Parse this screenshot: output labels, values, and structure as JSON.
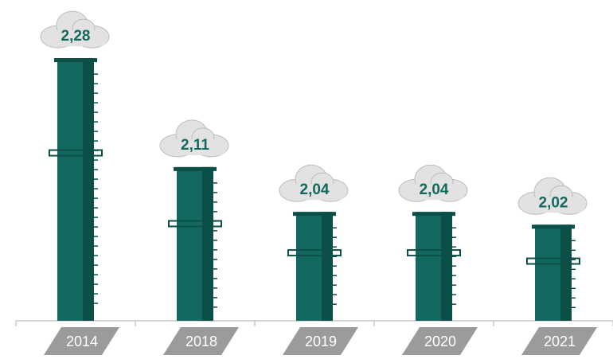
{
  "chart_data": {
    "type": "bar",
    "categories": [
      "2014",
      "2018",
      "2019",
      "2020",
      "2021"
    ],
    "values": [
      2.28,
      2.11,
      2.04,
      2.04,
      2.02
    ],
    "value_labels": [
      "2,28",
      "2,11",
      "2,04",
      "2,04",
      "2,02"
    ],
    "color": "#13695f",
    "ylim": [
      1.87,
      2.3
    ]
  }
}
